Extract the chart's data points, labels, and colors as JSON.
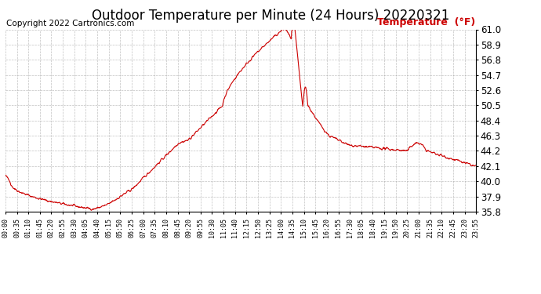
{
  "title": "Outdoor Temperature per Minute (24 Hours) 20220321",
  "copyright_text": "Copyright 2022 Cartronics.com",
  "legend_text": "Temperature  (°F)",
  "line_color": "#cc0000",
  "background_color": "#ffffff",
  "plot_bg_color": "#ffffff",
  "grid_color": "#999999",
  "title_fontsize": 12,
  "ylabel_fontsize": 8.5,
  "xlabel_fontsize": 6.0,
  "copyright_fontsize": 7.5,
  "legend_fontsize": 9,
  "ylim": [
    35.8,
    61.0
  ],
  "yticks": [
    35.8,
    37.9,
    40.0,
    42.1,
    44.2,
    46.3,
    48.4,
    50.5,
    52.6,
    54.7,
    56.8,
    58.9,
    61.0
  ],
  "xtick_labels": [
    "00:00",
    "00:35",
    "01:10",
    "01:45",
    "02:20",
    "02:55",
    "03:30",
    "04:05",
    "04:40",
    "05:15",
    "05:50",
    "06:25",
    "07:00",
    "07:35",
    "08:10",
    "08:45",
    "09:20",
    "09:55",
    "10:30",
    "11:05",
    "11:40",
    "12:15",
    "12:50",
    "13:25",
    "14:00",
    "14:35",
    "15:10",
    "15:45",
    "16:20",
    "16:55",
    "17:30",
    "18:05",
    "18:40",
    "19:15",
    "19:50",
    "20:25",
    "21:00",
    "21:35",
    "22:10",
    "22:45",
    "23:20",
    "23:55"
  ]
}
